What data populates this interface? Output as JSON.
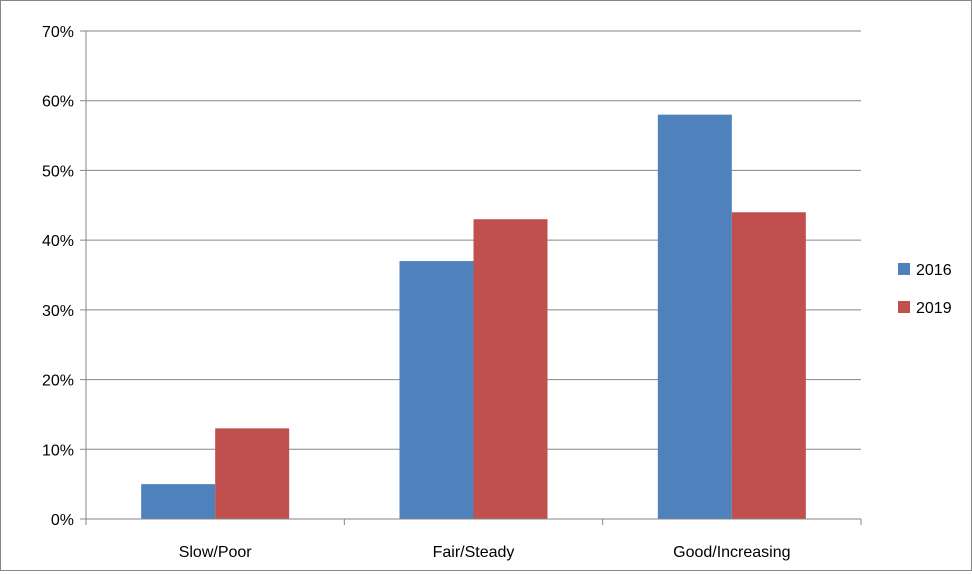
{
  "chart_data": {
    "type": "bar",
    "categories": [
      "Slow/Poor",
      "Fair/Steady",
      "Good/Increasing"
    ],
    "series": [
      {
        "name": "2016",
        "values": [
          5,
          37,
          58
        ],
        "color": "#4F81BD"
      },
      {
        "name": "2019",
        "values": [
          13,
          43,
          44
        ],
        "color": "#C0504D"
      }
    ],
    "title": "",
    "xlabel": "",
    "ylabel": "",
    "ylim": [
      0,
      70
    ],
    "ytick_step": 10,
    "ytick_labels": [
      "0%",
      "10%",
      "20%",
      "30%",
      "40%",
      "50%",
      "60%",
      "70%"
    ],
    "grid": true,
    "legend_position": "right"
  }
}
